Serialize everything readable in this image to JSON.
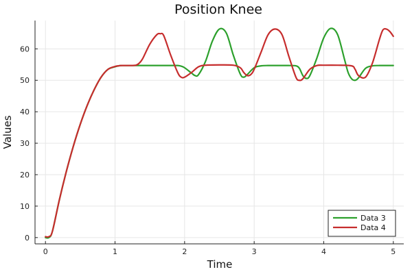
{
  "chart_data": {
    "type": "line",
    "title": "Position Knee",
    "xlabel": "Time",
    "ylabel": "Values",
    "xlim": [
      -0.15,
      5.15
    ],
    "ylim": [
      -2,
      69
    ],
    "xticks": [
      0,
      1,
      2,
      3,
      4,
      5
    ],
    "yticks": [
      0,
      10,
      20,
      30,
      40,
      50,
      60
    ],
    "grid": true,
    "legend_position": "bottom-right",
    "series": [
      {
        "name": "Data 3",
        "color": "#2ca02c",
        "x": [
          0,
          0.05,
          0.1,
          0.2,
          0.3,
          0.4,
          0.5,
          0.6,
          0.7,
          0.8,
          0.9,
          1.0,
          1.05,
          1.1,
          1.2,
          1.3,
          1.4,
          1.5,
          1.6,
          1.7,
          1.8,
          1.9,
          1.95,
          2.0,
          2.1,
          2.15,
          2.2,
          2.3,
          2.4,
          2.5,
          2.6,
          2.7,
          2.8,
          2.85,
          2.9,
          3.0,
          3.1,
          3.2,
          3.3,
          3.4,
          3.5,
          3.6,
          3.65,
          3.7,
          3.75,
          3.8,
          3.9,
          4.0,
          4.1,
          4.2,
          4.3,
          4.35,
          4.4,
          4.45,
          4.5,
          4.6,
          4.7,
          4.8,
          4.9,
          5.0
        ],
        "y": [
          0,
          0,
          2,
          12,
          21,
          29,
          36,
          42,
          47,
          51,
          53.5,
          54.3,
          54.6,
          54.7,
          54.7,
          54.7,
          54.7,
          54.7,
          54.7,
          54.7,
          54.7,
          54.7,
          54.5,
          54.0,
          52.3,
          51.5,
          51.8,
          56.0,
          62.5,
          66.3,
          65.0,
          58.0,
          52.0,
          51.0,
          51.8,
          54.0,
          54.6,
          54.7,
          54.7,
          54.7,
          54.7,
          54.6,
          53.8,
          51.5,
          50.6,
          51.5,
          57.0,
          63.5,
          66.5,
          64.5,
          56.5,
          52.5,
          50.5,
          50.0,
          50.8,
          53.8,
          54.6,
          54.7,
          54.7,
          54.7
        ]
      },
      {
        "name": "Data 4",
        "color": "#c62d2d",
        "x": [
          0,
          0.05,
          0.1,
          0.2,
          0.3,
          0.4,
          0.5,
          0.6,
          0.7,
          0.8,
          0.9,
          1.0,
          1.05,
          1.1,
          1.2,
          1.3,
          1.35,
          1.4,
          1.5,
          1.6,
          1.65,
          1.7,
          1.8,
          1.9,
          1.95,
          2.0,
          2.1,
          2.2,
          2.3,
          2.5,
          2.7,
          2.8,
          2.85,
          2.9,
          2.95,
          3.0,
          3.1,
          3.2,
          3.3,
          3.4,
          3.5,
          3.6,
          3.65,
          3.7,
          3.8,
          3.9,
          4.0,
          4.2,
          4.4,
          4.45,
          4.5,
          4.6,
          4.7,
          4.8,
          4.85,
          4.9,
          4.95,
          5.0
        ],
        "y": [
          0.3,
          0.3,
          2,
          12,
          21,
          29,
          36,
          42,
          47,
          51,
          53.5,
          54.4,
          54.6,
          54.7,
          54.7,
          54.8,
          55.5,
          57.0,
          61.5,
          64.5,
          64.8,
          64.2,
          58.0,
          52.5,
          51.0,
          51.0,
          52.5,
          54.3,
          54.8,
          54.9,
          54.8,
          54.0,
          52.5,
          51.5,
          51.8,
          53.5,
          59.0,
          64.5,
          66.3,
          64.5,
          57.5,
          51.0,
          50.0,
          50.5,
          53.5,
          54.7,
          54.8,
          54.8,
          54.6,
          53.5,
          51.5,
          51.0,
          55.5,
          63.0,
          66.0,
          66.3,
          65.5,
          64.0
        ]
      }
    ]
  }
}
